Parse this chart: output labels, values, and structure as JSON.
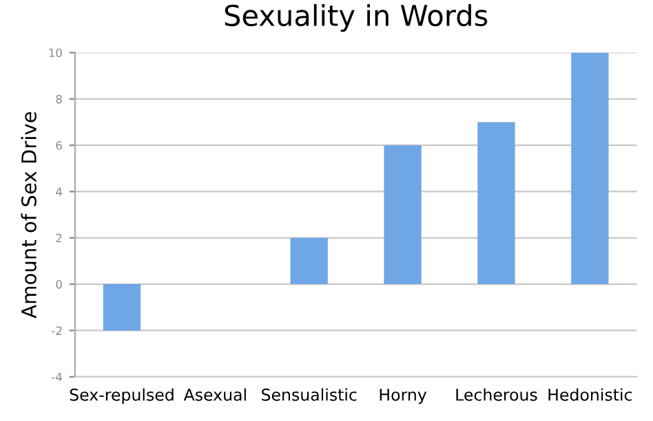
{
  "chart_data": {
    "type": "bar",
    "title": "Sexuality in Words",
    "ylabel": "Amount of Sex Drive",
    "categories": [
      "Sex-repulsed",
      "Asexual",
      "Sensualistic",
      "Horny",
      "Lecherous",
      "Hedonistic"
    ],
    "values": [
      -2,
      0,
      2,
      6,
      7,
      10
    ],
    "color": "#6fa6e6",
    "ylim": [
      -4,
      10
    ],
    "yticks": [
      -4,
      -2,
      0,
      2,
      4,
      6,
      8,
      10
    ],
    "grid": "y"
  }
}
